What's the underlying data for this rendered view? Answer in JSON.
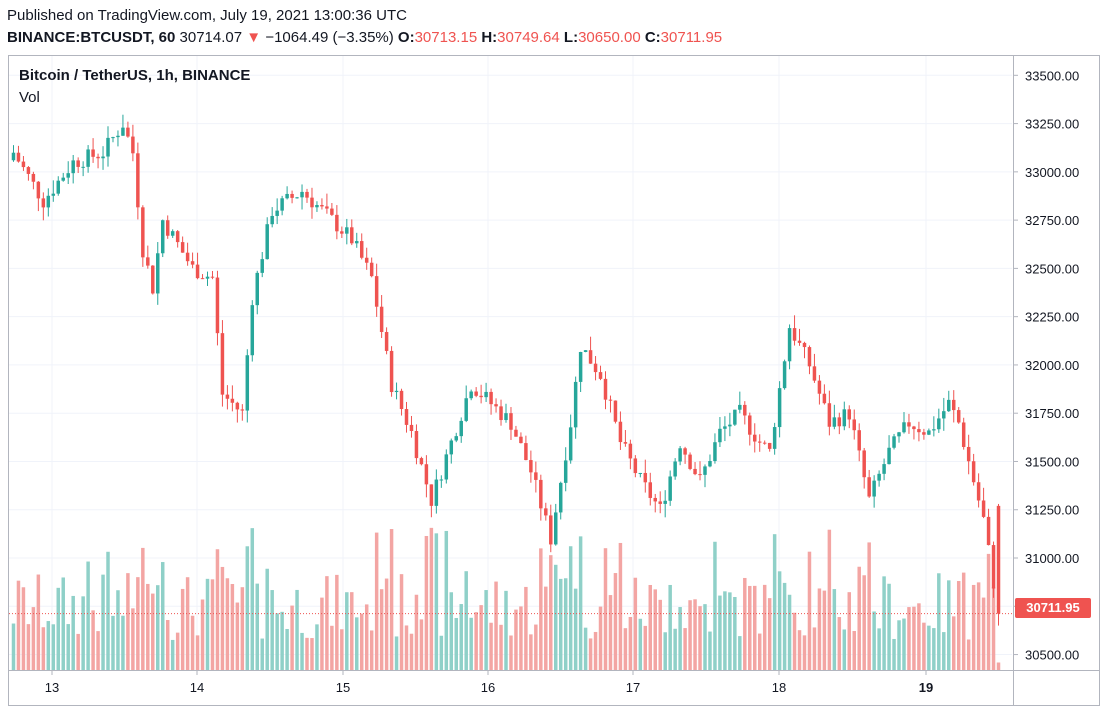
{
  "header": {
    "published": "Published on TradingView.com, July 19, 2021 13:00:36 UTC",
    "symbol": "BINANCE:BTCUSDT, 60",
    "last": "30714.07",
    "change_arrow": "▼",
    "change": "−1064.49 (−3.35%)",
    "o_label": "O:",
    "o_value": "30713.15",
    "h_label": "H:",
    "h_value": "30749.64",
    "l_label": "L:",
    "l_value": "30650.00",
    "c_label": "C:",
    "c_value": "30711.95"
  },
  "legend": {
    "title": "Bitcoin / TetherUS, 1h, BINANCE",
    "volume_label": "Vol"
  },
  "colors": {
    "up": "#26a69a",
    "down": "#ef5350",
    "up_vol": "#8fd0c8",
    "down_vol": "#f3a5a3",
    "grid": "#f0f3fa",
    "axis_text": "#131722"
  },
  "chart_data": {
    "type": "candlestick",
    "title": "Bitcoin / TetherUS, 1h, BINANCE",
    "x_ticks": [
      "13",
      "14",
      "15",
      "16",
      "17",
      "18",
      "19"
    ],
    "y_ticks": [
      "33500.00",
      "33250.00",
      "33000.00",
      "32750.00",
      "32500.00",
      "32250.00",
      "32000.00",
      "31750.00",
      "31500.00",
      "31250.00",
      "31000.00",
      "30750.00",
      "30500.00"
    ],
    "ylim": [
      30400,
      33650
    ],
    "last_price": 30711.95,
    "last_price_label": "30711.95",
    "grid": true,
    "volume_series": "Vol",
    "approx_close_path": [
      {
        "t": 0,
        "c": 33100
      },
      {
        "t": 6,
        "c": 32850
      },
      {
        "t": 12,
        "c": 33050
      },
      {
        "t": 18,
        "c": 33100
      },
      {
        "t": 22,
        "c": 33250
      },
      {
        "t": 24,
        "c": 33100
      },
      {
        "t": 26,
        "c": 32600
      },
      {
        "t": 28,
        "c": 32400
      },
      {
        "t": 30,
        "c": 32750
      },
      {
        "t": 36,
        "c": 32500
      },
      {
        "t": 40,
        "c": 32450
      },
      {
        "t": 42,
        "c": 31850
      },
      {
        "t": 46,
        "c": 31750
      },
      {
        "t": 48,
        "c": 32350
      },
      {
        "t": 52,
        "c": 32800
      },
      {
        "t": 58,
        "c": 32900
      },
      {
        "t": 64,
        "c": 32750
      },
      {
        "t": 68,
        "c": 32650
      },
      {
        "t": 72,
        "c": 32450
      },
      {
        "t": 76,
        "c": 31900
      },
      {
        "t": 80,
        "c": 31650
      },
      {
        "t": 84,
        "c": 31300
      },
      {
        "t": 88,
        "c": 31600
      },
      {
        "t": 92,
        "c": 31900
      },
      {
        "t": 96,
        "c": 31800
      },
      {
        "t": 100,
        "c": 31700
      },
      {
        "t": 104,
        "c": 31450
      },
      {
        "t": 108,
        "c": 31100
      },
      {
        "t": 112,
        "c": 31700
      },
      {
        "t": 114,
        "c": 32100
      },
      {
        "t": 118,
        "c": 31950
      },
      {
        "t": 122,
        "c": 31600
      },
      {
        "t": 126,
        "c": 31400
      },
      {
        "t": 130,
        "c": 31250
      },
      {
        "t": 134,
        "c": 31600
      },
      {
        "t": 138,
        "c": 31400
      },
      {
        "t": 142,
        "c": 31650
      },
      {
        "t": 146,
        "c": 31750
      },
      {
        "t": 150,
        "c": 31600
      },
      {
        "t": 152,
        "c": 31550
      },
      {
        "t": 156,
        "c": 32200
      },
      {
        "t": 160,
        "c": 32000
      },
      {
        "t": 164,
        "c": 31700
      },
      {
        "t": 168,
        "c": 31750
      },
      {
        "t": 172,
        "c": 31300
      },
      {
        "t": 176,
        "c": 31550
      },
      {
        "t": 180,
        "c": 31700
      },
      {
        "t": 184,
        "c": 31650
      },
      {
        "t": 188,
        "c": 31800
      },
      {
        "t": 190,
        "c": 31700
      },
      {
        "t": 192,
        "c": 31500
      },
      {
        "t": 195,
        "c": 31200
      },
      {
        "t": 198,
        "c": 30712
      }
    ]
  }
}
